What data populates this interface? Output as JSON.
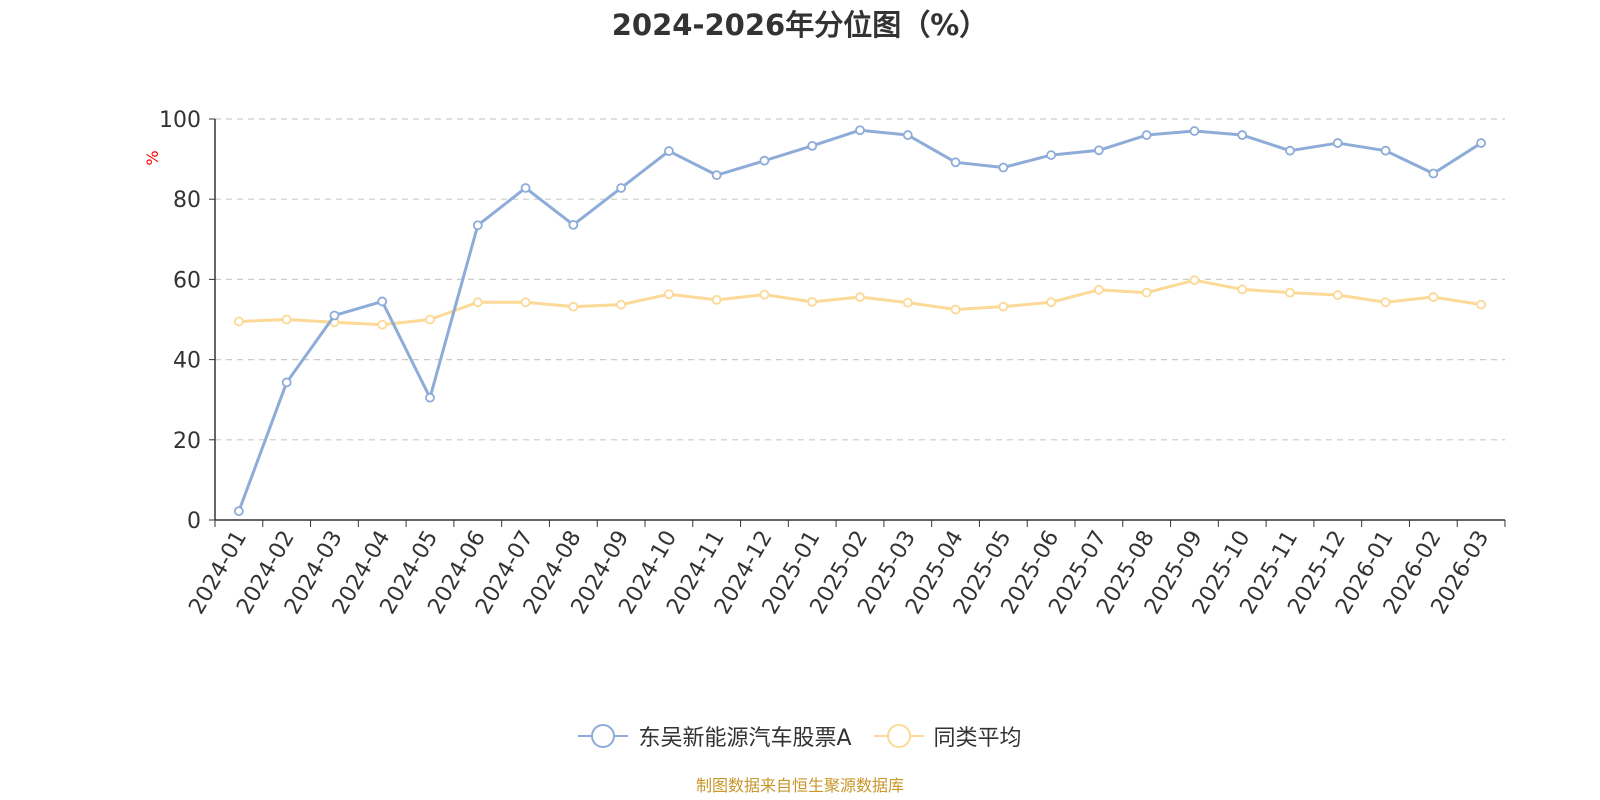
{
  "chart_data": {
    "type": "line",
    "title": "2024-2026年分位图（%）",
    "ylabel": "%",
    "ylim": [
      0,
      100
    ],
    "yticks": [
      0,
      20,
      40,
      60,
      80,
      100
    ],
    "grid": true,
    "legend_position": "bottom",
    "categories": [
      "2024-01",
      "2024-02",
      "2024-03",
      "2024-04",
      "2024-05",
      "2024-06",
      "2024-07",
      "2024-08",
      "2024-09",
      "2024-10",
      "2024-11",
      "2024-12",
      "2025-01",
      "2025-02",
      "2025-03",
      "2025-04",
      "2025-05",
      "2025-06",
      "2025-07",
      "2025-08",
      "2025-09",
      "2025-10",
      "2025-11",
      "2025-12",
      "2026-01",
      "2026-02",
      "2026-03"
    ],
    "series": [
      {
        "name": "东吴新能源汽车股票A",
        "color": "#8eacd8",
        "values": [
          2.2,
          34.3,
          51.0,
          54.5,
          30.5,
          73.5,
          82.8,
          73.6,
          82.8,
          92.0,
          86.0,
          89.6,
          93.3,
          97.2,
          96.0,
          89.2,
          87.9,
          91.0,
          92.2,
          96.0,
          97.0,
          96.0,
          92.1,
          94.0,
          92.1,
          86.4,
          94.0
        ]
      },
      {
        "name": "同类平均",
        "color": "#fcd997",
        "values": [
          49.5,
          50.0,
          49.3,
          48.7,
          50.0,
          54.3,
          54.3,
          53.2,
          53.7,
          56.3,
          54.9,
          56.2,
          54.4,
          55.6,
          54.2,
          52.5,
          53.2,
          54.3,
          57.4,
          56.7,
          59.8,
          57.5,
          56.7,
          56.1,
          54.3,
          55.6,
          53.7
        ]
      }
    ]
  },
  "footer": {
    "text": "制图数据来自恒生聚源数据库",
    "color": "#c8962a"
  },
  "colors": {
    "axis": "#333333",
    "grid": "#cccccc",
    "ylabel": "#ff0000"
  }
}
